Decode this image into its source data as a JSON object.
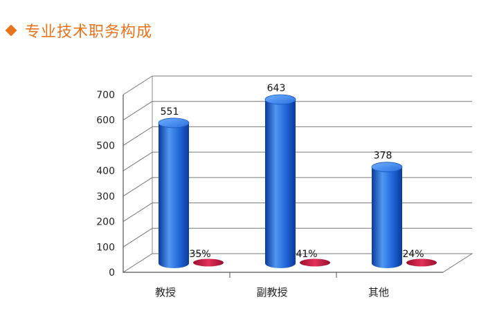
{
  "title": "专业技术职务构成",
  "chart_data": {
    "type": "bar",
    "categories": [
      "教授",
      "副教授",
      "其他"
    ],
    "series": [
      {
        "values": [
          551,
          643,
          378
        ]
      },
      {
        "values": [
          35,
          41,
          24
        ]
      }
    ],
    "percent_labels": [
      "35%",
      "41%",
      "24%"
    ],
    "y_ticks": [
      0,
      100,
      200,
      300,
      400,
      500,
      600,
      700
    ],
    "ylim": [
      0,
      700
    ],
    "grid": true,
    "colors": {
      "bar": "#1f63d6",
      "bar_dark": "#0b3a9a",
      "bar_light": "#4f97f2",
      "pct": "#c0143c",
      "title": "#e8731a"
    }
  }
}
